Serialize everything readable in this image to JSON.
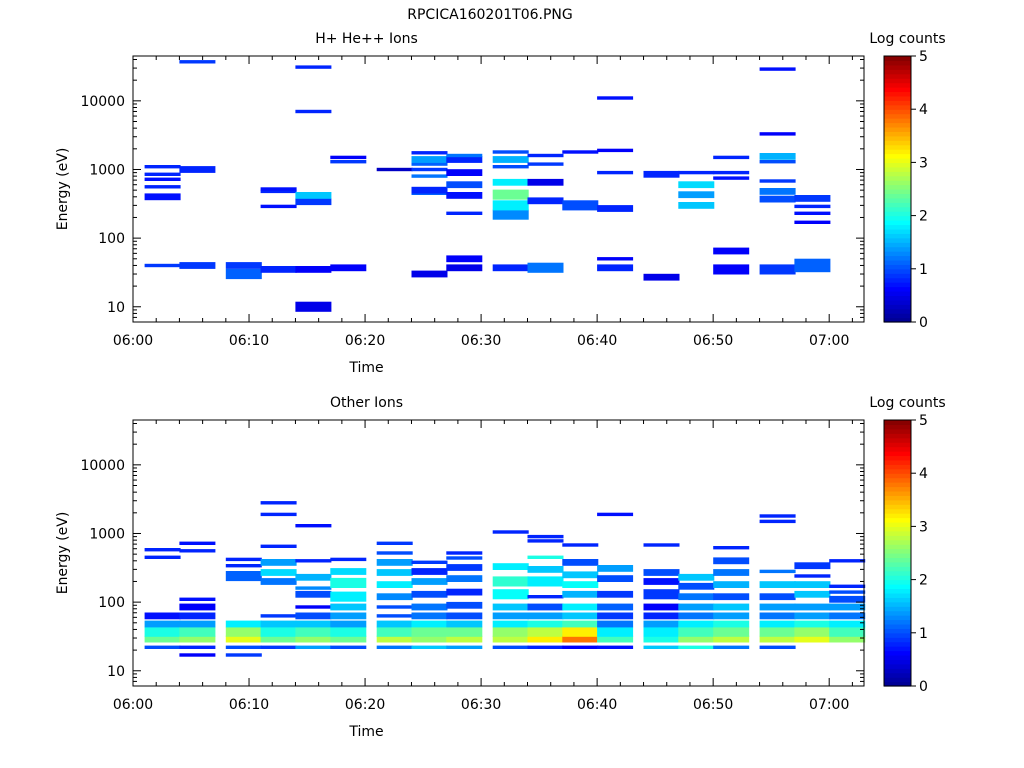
{
  "figure_title": "RPCICA160201T06.PNG",
  "colors": {
    "colormap": [
      "#00008f",
      "#0000ff",
      "#00ffff",
      "#ffff00",
      "#ff0000",
      "#800000"
    ],
    "axis": "#000000",
    "background": "#ffffff"
  },
  "chart_data": [
    {
      "type": "heatmap",
      "title": "H+ He++ Ions",
      "xlabel": "Time",
      "ylabel": "Energy (eV)",
      "x_ticks": [
        "06:00",
        "06:10",
        "06:20",
        "06:30",
        "06:40",
        "06:50",
        "07:00"
      ],
      "x_range_minutes": [
        0,
        63
      ],
      "y_scale": "log",
      "y_ticks": [
        10,
        100,
        1000,
        10000
      ],
      "y_tick_labels": [
        "10",
        "100",
        "1000",
        "10000"
      ],
      "y_range": [
        6,
        45000
      ],
      "colorbar": {
        "label": "Log counts",
        "range": [
          0,
          5
        ],
        "ticks": [
          "0",
          "1",
          "2",
          "3",
          "4",
          "5"
        ]
      },
      "time_bins_minutes": [
        1,
        4,
        8,
        11,
        14,
        17,
        21,
        24,
        27,
        31,
        34,
        37,
        40,
        44,
        47,
        50,
        54,
        57,
        60
      ],
      "bins": [
        [
          40,
          1,
          0.9
        ],
        [
          400,
          2,
          0.7
        ],
        [
          560,
          1,
          0.8
        ],
        [
          720,
          1,
          0.7
        ],
        [
          850,
          1,
          0.8
        ],
        [
          1100,
          1,
          0.8
        ],
        [
          40,
          2,
          0.9
        ],
        [
          1000,
          2,
          0.8
        ],
        [
          37000,
          1,
          0.9
        ],
        [
          30,
          3,
          1.1
        ],
        [
          40,
          2,
          0.9
        ],
        [
          35,
          2,
          0.8
        ],
        [
          290,
          1,
          0.7
        ],
        [
          480,
          1,
          0.8
        ],
        [
          520,
          1,
          0.7
        ],
        [
          10,
          3,
          0.5
        ],
        [
          35,
          2,
          0.6
        ],
        [
          340,
          2,
          0.9
        ],
        [
          420,
          2,
          1.6
        ],
        [
          7000,
          1,
          0.8
        ],
        [
          31000,
          1,
          0.8
        ],
        [
          37,
          2,
          0.6
        ],
        [
          1300,
          1,
          0.9
        ],
        [
          1500,
          1,
          0.6
        ],
        [
          1000,
          1,
          0.3
        ],
        [
          30,
          2,
          0.5
        ],
        [
          450,
          1,
          1.1
        ],
        [
          500,
          2,
          0.8
        ],
        [
          800,
          1,
          1.2
        ],
        [
          1000,
          1,
          0.9
        ],
        [
          1200,
          1,
          1.1
        ],
        [
          1400,
          2,
          1.4
        ],
        [
          1750,
          1,
          0.8
        ],
        [
          37,
          2,
          0.5
        ],
        [
          50,
          2,
          0.6
        ],
        [
          230,
          1,
          0.8
        ],
        [
          420,
          2,
          0.7
        ],
        [
          600,
          2,
          1.0
        ],
        [
          900,
          2,
          0.6
        ],
        [
          1400,
          2,
          0.8
        ],
        [
          1600,
          1,
          1.2
        ],
        [
          37,
          2,
          0.8
        ],
        [
          220,
          3,
          1.3
        ],
        [
          300,
          3,
          1.8
        ],
        [
          430,
          3,
          2.4
        ],
        [
          650,
          2,
          1.8
        ],
        [
          1100,
          1,
          1.0
        ],
        [
          1400,
          2,
          1.5
        ],
        [
          1800,
          1,
          1.0
        ],
        [
          37,
          3,
          1.2
        ],
        [
          350,
          2,
          0.8
        ],
        [
          650,
          2,
          0.5
        ],
        [
          1200,
          1,
          0.9
        ],
        [
          1600,
          1,
          0.8
        ],
        [
          300,
          3,
          1.0
        ],
        [
          1800,
          1,
          0.7
        ],
        [
          37,
          2,
          0.8
        ],
        [
          50,
          1,
          0.6
        ],
        [
          270,
          2,
          0.8
        ],
        [
          900,
          1,
          0.8
        ],
        [
          1900,
          1,
          0.6
        ],
        [
          11000,
          1,
          0.7
        ],
        [
          27,
          2,
          0.5
        ],
        [
          850,
          2,
          0.8
        ],
        [
          300,
          2,
          1.6
        ],
        [
          430,
          2,
          1.4
        ],
        [
          600,
          2,
          1.7
        ],
        [
          900,
          1,
          0.8
        ],
        [
          35,
          3,
          0.6
        ],
        [
          65,
          2,
          0.6
        ],
        [
          750,
          1,
          0.7
        ],
        [
          900,
          1,
          0.8
        ],
        [
          1500,
          1,
          0.8
        ],
        [
          35,
          3,
          0.9
        ],
        [
          370,
          2,
          1.0
        ],
        [
          480,
          2,
          1.2
        ],
        [
          680,
          1,
          0.9
        ],
        [
          1300,
          1,
          1.0
        ],
        [
          1550,
          2,
          1.5
        ],
        [
          3300,
          1,
          0.6
        ],
        [
          29000,
          1,
          0.7
        ],
        [
          40,
          4,
          1.1
        ],
        [
          170,
          1,
          0.6
        ],
        [
          230,
          1,
          0.7
        ],
        [
          290,
          1,
          0.8
        ],
        [
          380,
          2,
          0.9
        ]
      ]
    },
    {
      "type": "heatmap",
      "title": "Other Ions",
      "xlabel": "Time",
      "ylabel": "Energy (eV)",
      "x_ticks": [
        "06:00",
        "06:10",
        "06:20",
        "06:30",
        "06:40",
        "06:50",
        "07:00"
      ],
      "x_range_minutes": [
        0,
        63
      ],
      "y_scale": "log",
      "y_ticks": [
        10,
        100,
        1000,
        10000
      ],
      "y_tick_labels": [
        "10",
        "100",
        "1000",
        "10000"
      ],
      "y_range": [
        6,
        45000
      ],
      "colorbar": {
        "label": "Log counts",
        "range": [
          0,
          5
        ],
        "ticks": [
          "0",
          "1",
          "2",
          "3",
          "4",
          "5"
        ]
      },
      "time_bins_minutes": [
        1,
        4,
        8,
        11,
        14,
        17,
        21,
        24,
        27,
        31,
        34,
        37,
        40,
        44,
        47,
        50,
        54,
        57,
        60
      ],
      "bins": [
        [
          22,
          1,
          1.0
        ],
        [
          29,
          2,
          2.4
        ],
        [
          37,
          3,
          2.0
        ],
        [
          48,
          2,
          1.4
        ],
        [
          63,
          2,
          0.7
        ],
        [
          450,
          1,
          0.8
        ],
        [
          580,
          1,
          0.8
        ],
        [
          17,
          1,
          0.6
        ],
        [
          22,
          1,
          0.8
        ],
        [
          29,
          2,
          2.6
        ],
        [
          37,
          3,
          2.2
        ],
        [
          48,
          2,
          1.4
        ],
        [
          63,
          2,
          0.8
        ],
        [
          85,
          2,
          0.6
        ],
        [
          110,
          1,
          0.7
        ],
        [
          560,
          1,
          0.8
        ],
        [
          720,
          1,
          0.7
        ],
        [
          17,
          1,
          0.9
        ],
        [
          22,
          1,
          1.0
        ],
        [
          29,
          2,
          3.0
        ],
        [
          37,
          3,
          2.6
        ],
        [
          48,
          2,
          1.8
        ],
        [
          240,
          3,
          1.1
        ],
        [
          340,
          1,
          0.8
        ],
        [
          420,
          1,
          0.8
        ],
        [
          22,
          1,
          0.9
        ],
        [
          29,
          2,
          2.4
        ],
        [
          37,
          3,
          2.0
        ],
        [
          48,
          2,
          1.6
        ],
        [
          63,
          1,
          0.9
        ],
        [
          200,
          2,
          1.2
        ],
        [
          270,
          2,
          1.7
        ],
        [
          380,
          2,
          1.4
        ],
        [
          650,
          1,
          0.8
        ],
        [
          1900,
          1,
          0.8
        ],
        [
          2800,
          1,
          0.8
        ],
        [
          22,
          1,
          1.4
        ],
        [
          29,
          2,
          2.6
        ],
        [
          37,
          3,
          2.2
        ],
        [
          48,
          2,
          1.6
        ],
        [
          63,
          2,
          1.0
        ],
        [
          85,
          1,
          0.6
        ],
        [
          130,
          2,
          1.0
        ],
        [
          160,
          1,
          1.3
        ],
        [
          230,
          2,
          1.5
        ],
        [
          400,
          1,
          0.8
        ],
        [
          1300,
          1,
          0.7
        ],
        [
          22,
          1,
          1.0
        ],
        [
          29,
          2,
          2.4
        ],
        [
          37,
          3,
          2.0
        ],
        [
          48,
          2,
          1.4
        ],
        [
          63,
          2,
          1.4
        ],
        [
          85,
          2,
          1.6
        ],
        [
          120,
          3,
          1.8
        ],
        [
          190,
          3,
          2.0
        ],
        [
          280,
          2,
          1.7
        ],
        [
          420,
          1,
          0.8
        ],
        [
          22,
          1,
          1.2
        ],
        [
          29,
          2,
          2.8
        ],
        [
          37,
          3,
          2.2
        ],
        [
          48,
          2,
          1.6
        ],
        [
          63,
          1,
          1.0
        ],
        [
          85,
          1,
          1.0
        ],
        [
          120,
          2,
          1.3
        ],
        [
          180,
          2,
          1.8
        ],
        [
          270,
          2,
          1.6
        ],
        [
          380,
          2,
          1.4
        ],
        [
          520,
          1,
          1.0
        ],
        [
          720,
          1,
          0.9
        ],
        [
          22,
          1,
          1.6
        ],
        [
          29,
          2,
          2.6
        ],
        [
          37,
          3,
          2.4
        ],
        [
          48,
          2,
          1.8
        ],
        [
          63,
          2,
          1.2
        ],
        [
          85,
          2,
          1.2
        ],
        [
          130,
          2,
          1.0
        ],
        [
          200,
          2,
          1.4
        ],
        [
          280,
          2,
          0.8
        ],
        [
          380,
          1,
          0.9
        ],
        [
          22,
          1,
          1.4
        ],
        [
          29,
          2,
          2.8
        ],
        [
          37,
          3,
          2.4
        ],
        [
          48,
          2,
          1.6
        ],
        [
          63,
          2,
          1.0
        ],
        [
          90,
          2,
          1.0
        ],
        [
          140,
          2,
          0.8
        ],
        [
          220,
          2,
          1.2
        ],
        [
          320,
          2,
          0.9
        ],
        [
          440,
          1,
          1.0
        ],
        [
          520,
          1,
          0.8
        ],
        [
          22,
          1,
          1.0
        ],
        [
          29,
          2,
          2.8
        ],
        [
          37,
          3,
          2.6
        ],
        [
          48,
          2,
          1.8
        ],
        [
          63,
          2,
          1.4
        ],
        [
          85,
          2,
          1.6
        ],
        [
          130,
          3,
          1.9
        ],
        [
          200,
          3,
          2.1
        ],
        [
          330,
          2,
          1.8
        ],
        [
          1050,
          1,
          0.8
        ],
        [
          22,
          1,
          0.8
        ],
        [
          29,
          2,
          3.2
        ],
        [
          37,
          3,
          2.8
        ],
        [
          48,
          2,
          2.0
        ],
        [
          63,
          2,
          1.4
        ],
        [
          85,
          2,
          1.0
        ],
        [
          120,
          1,
          0.8
        ],
        [
          200,
          3,
          1.8
        ],
        [
          300,
          2,
          1.6
        ],
        [
          450,
          1,
          2.0
        ],
        [
          780,
          1,
          0.8
        ],
        [
          900,
          1,
          0.8
        ],
        [
          22,
          1,
          0.6
        ],
        [
          29,
          2,
          3.8
        ],
        [
          37,
          3,
          3.2
        ],
        [
          48,
          2,
          2.2
        ],
        [
          63,
          2,
          1.6
        ],
        [
          85,
          2,
          1.8
        ],
        [
          130,
          2,
          1.5
        ],
        [
          180,
          2,
          1.9
        ],
        [
          250,
          2,
          1.6
        ],
        [
          380,
          2,
          1.0
        ],
        [
          680,
          1,
          0.8
        ],
        [
          22,
          1,
          0.7
        ],
        [
          29,
          2,
          2.2
        ],
        [
          37,
          3,
          1.8
        ],
        [
          48,
          2,
          1.2
        ],
        [
          63,
          2,
          0.9
        ],
        [
          85,
          2,
          1.1
        ],
        [
          130,
          2,
          0.9
        ],
        [
          220,
          2,
          1.0
        ],
        [
          310,
          2,
          1.4
        ],
        [
          1900,
          1,
          0.7
        ],
        [
          22,
          1,
          1.6
        ],
        [
          29,
          2,
          2.0
        ],
        [
          37,
          3,
          1.8
        ],
        [
          48,
          2,
          1.4
        ],
        [
          63,
          2,
          0.8
        ],
        [
          85,
          2,
          0.6
        ],
        [
          130,
          3,
          0.9
        ],
        [
          200,
          2,
          0.7
        ],
        [
          270,
          2,
          1.0
        ],
        [
          680,
          1,
          0.8
        ],
        [
          22,
          1,
          2.0
        ],
        [
          29,
          2,
          2.6
        ],
        [
          37,
          3,
          2.2
        ],
        [
          48,
          2,
          1.8
        ],
        [
          63,
          2,
          1.2
        ],
        [
          85,
          2,
          1.4
        ],
        [
          120,
          2,
          1.2
        ],
        [
          170,
          2,
          1.0
        ],
        [
          230,
          2,
          1.6
        ],
        [
          22,
          1,
          1.2
        ],
        [
          29,
          2,
          2.8
        ],
        [
          37,
          3,
          2.4
        ],
        [
          48,
          2,
          2.0
        ],
        [
          63,
          2,
          1.4
        ],
        [
          85,
          2,
          1.6
        ],
        [
          120,
          2,
          1.0
        ],
        [
          180,
          2,
          1.5
        ],
        [
          270,
          2,
          1.2
        ],
        [
          400,
          2,
          1.0
        ],
        [
          620,
          1,
          0.8
        ],
        [
          22,
          1,
          1.0
        ],
        [
          29,
          2,
          2.8
        ],
        [
          37,
          3,
          2.4
        ],
        [
          48,
          2,
          1.8
        ],
        [
          63,
          2,
          1.2
        ],
        [
          85,
          2,
          1.4
        ],
        [
          120,
          2,
          1.0
        ],
        [
          180,
          2,
          1.6
        ],
        [
          280,
          1,
          1.2
        ],
        [
          1500,
          1,
          0.8
        ],
        [
          1800,
          1,
          0.8
        ],
        [
          29,
          2,
          3.0
        ],
        [
          37,
          3,
          2.6
        ],
        [
          48,
          2,
          2.0
        ],
        [
          63,
          2,
          1.4
        ],
        [
          85,
          2,
          1.4
        ],
        [
          130,
          2,
          1.6
        ],
        [
          180,
          2,
          1.6
        ],
        [
          240,
          1,
          0.8
        ],
        [
          340,
          2,
          0.9
        ],
        [
          29,
          2,
          2.6
        ],
        [
          37,
          3,
          2.2
        ],
        [
          48,
          2,
          1.8
        ],
        [
          63,
          2,
          1.2
        ],
        [
          85,
          2,
          1.4
        ],
        [
          110,
          2,
          1.0
        ],
        [
          140,
          1,
          1.0
        ],
        [
          170,
          1,
          0.8
        ],
        [
          400,
          1,
          0.8
        ]
      ]
    }
  ]
}
